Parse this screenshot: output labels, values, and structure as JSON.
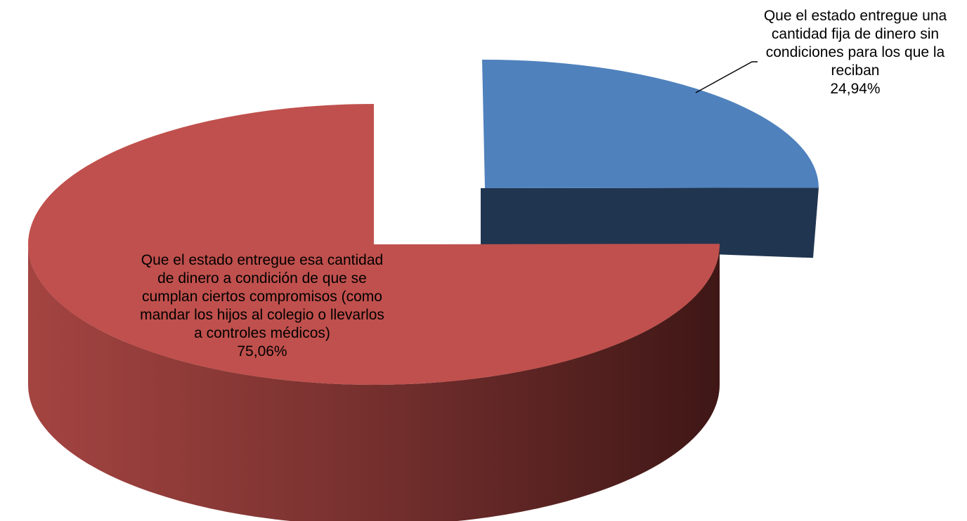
{
  "chart_data": {
    "type": "pie",
    "three_d": true,
    "exploded": true,
    "legend": "none",
    "slices": [
      {
        "label": "Que el estado entregue una cantidad fija de dinero sin condiciones para los que la reciban",
        "value": 24.94,
        "value_label": "24,94%",
        "color": "#4F81BD",
        "side_color": "#203550"
      },
      {
        "label": "Que el estado entregue esa cantidad de dinero a condición de que se cumplan ciertos compromisos (como mandar los hijos al colegio o llevarlos a controles médicos)",
        "value": 75.06,
        "value_label": "75,06%",
        "color": "#C0504D",
        "side_color": "#4A1C1B"
      }
    ]
  }
}
